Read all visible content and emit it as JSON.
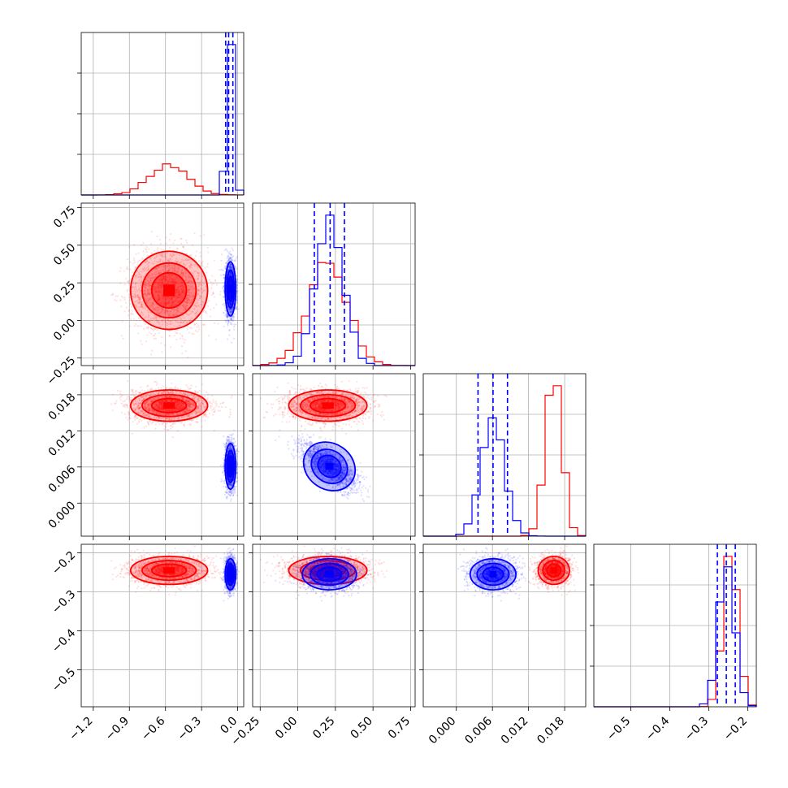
{
  "chart_data": {
    "type": "corner",
    "title": "",
    "series": [
      {
        "color": "#ff0000",
        "params": [
          {
            "mean": -0.57,
            "sd": 0.16
          },
          {
            "mean": 0.2,
            "sd": 0.13
          },
          {
            "mean": 0.0162,
            "sd": 0.0013
          },
          {
            "mean": -0.245,
            "sd": 0.018
          }
        ],
        "corr": [
          [
            1,
            0,
            0,
            0
          ],
          [
            0,
            1,
            0,
            0
          ],
          [
            0,
            0,
            1,
            0
          ],
          [
            0,
            0,
            0,
            1
          ]
        ]
      },
      {
        "color": "#0000ff",
        "params": [
          {
            "mean": -0.06,
            "sd": 0.022
          },
          {
            "mean": 0.21,
            "sd": 0.09
          },
          {
            "mean": 0.0061,
            "sd": 0.0019
          },
          {
            "mean": -0.255,
            "sd": 0.02
          }
        ],
        "corr": [
          [
            1,
            0,
            0,
            0
          ],
          [
            0,
            1,
            -0.7,
            0
          ],
          [
            0,
            -0.7,
            1,
            0
          ],
          [
            0,
            0,
            0,
            1
          ]
        ],
        "quantiles": [
          [
            -0.1,
            -0.075,
            -0.04
          ],
          [
            0.11,
            0.215,
            0.31
          ],
          [
            0.0036,
            0.0061,
            0.0085
          ],
          [
            -0.278,
            -0.255,
            -0.232
          ]
        ]
      }
    ],
    "axes": [
      {
        "range": [
          -1.3,
          0.05
        ],
        "ticks": [
          -1.2,
          -0.9,
          -0.6,
          -0.3,
          0.0
        ],
        "tick_labels": [
          "−1.2",
          "−0.9",
          "−0.6",
          "−0.3",
          "0.0"
        ]
      },
      {
        "range": [
          -0.3,
          0.78
        ],
        "ticks": [
          -0.25,
          0.0,
          0.25,
          0.5,
          0.75
        ],
        "tick_labels": [
          "−0.25",
          "0.00",
          "0.25",
          "0.50",
          "0.75"
        ]
      },
      {
        "range": [
          -0.0055,
          0.0215
        ],
        "ticks": [
          0.0,
          0.006,
          0.012,
          0.018
        ],
        "tick_labels": [
          "0.000",
          "0.006",
          "0.012",
          "0.018"
        ]
      },
      {
        "range": [
          -0.595,
          -0.178
        ],
        "ticks": [
          -0.5,
          -0.4,
          -0.3,
          -0.2
        ],
        "tick_labels": [
          "−0.5",
          "−0.4",
          "−0.3",
          "−0.2"
        ]
      }
    ],
    "grid": true,
    "xlabels": [
      "",
      "",
      "",
      ""
    ],
    "ylabels": [
      "",
      "",
      "",
      ""
    ]
  }
}
